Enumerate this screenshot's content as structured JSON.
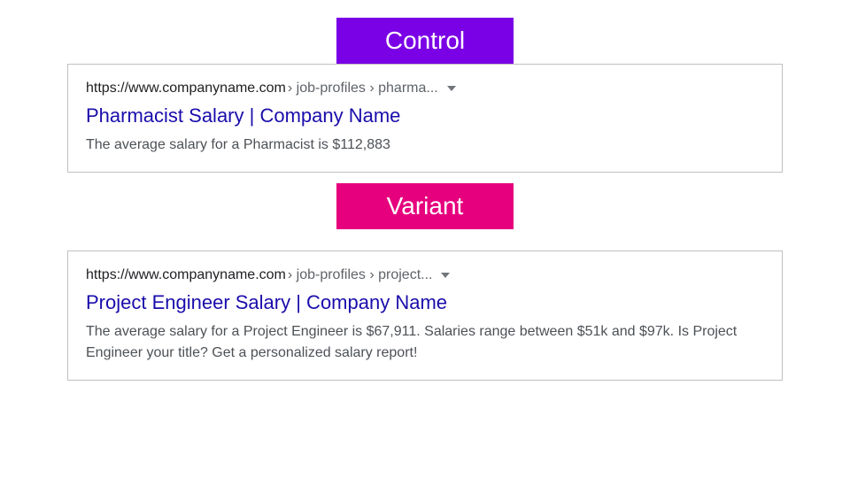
{
  "labels": {
    "control": {
      "text": "Control",
      "bg": "#7a00e6"
    },
    "variant": {
      "text": "Variant",
      "bg": "#e6007e"
    }
  },
  "control_result": {
    "url_domain": "https://www.companyname.com",
    "url_path": " › job-profiles › pharma... ",
    "title": "Pharmacist Salary | Company Name",
    "description": "The average salary for a Pharmacist is $112,883"
  },
  "variant_result": {
    "url_domain": "https://www.companyname.com",
    "url_path": " › job-profiles › project... ",
    "title": "Project Engineer Salary | Company Name",
    "description": "The average salary for a Project Engineer is $67,911. Salaries range between $51k and $97k. Is Project Engineer your title? Get a personalized salary report!"
  },
  "styles": {
    "link_color": "#1a0dab",
    "url_text_color": "#202124",
    "path_color": "#5f6368",
    "desc_color": "#4d5156",
    "border_color": "#c0c0c0",
    "dropdown_color": "#70757a"
  }
}
